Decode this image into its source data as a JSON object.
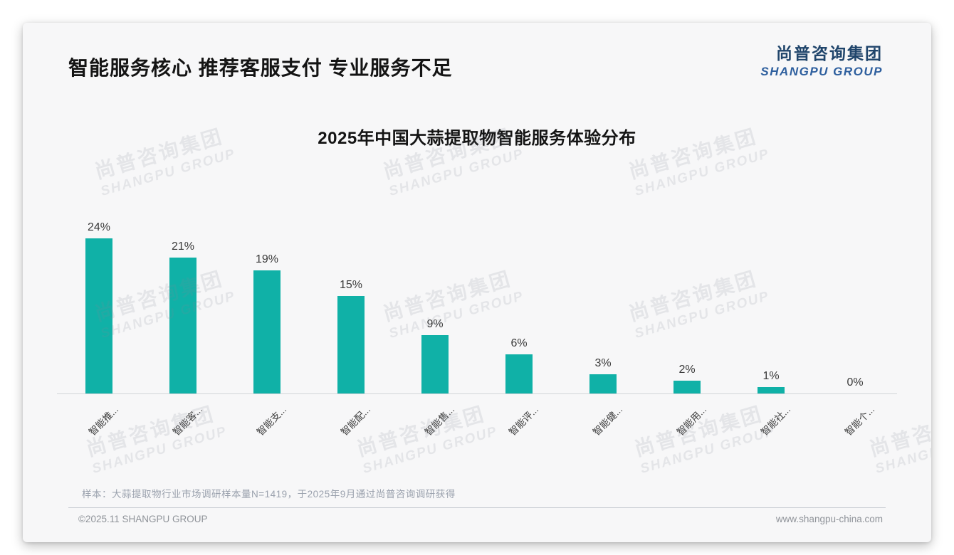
{
  "page": {
    "main_title": "智能服务核心 推荐客服支付 专业服务不足",
    "logo": {
      "cn": "尚普咨询集团",
      "en": "SHANGPU GROUP"
    },
    "watermark": {
      "cn": "尚普咨询集团",
      "en": "SHANGPU GROUP"
    },
    "footnote": "样本：大蒜提取物行业市场调研样本量N=1419，于2025年9月通过尚普咨询调研获得",
    "footer": {
      "left": "©2025.11 SHANGPU GROUP",
      "right": "www.shangpu-china.com"
    }
  },
  "chart_data": {
    "type": "bar",
    "title": "2025年中国大蒜提取物智能服务体验分布",
    "categories": [
      "智能推...",
      "智能客...",
      "智能支...",
      "智能配...",
      "智能售...",
      "智能评...",
      "智能健...",
      "智能用...",
      "智能社...",
      "智能个..."
    ],
    "values": [
      24,
      21,
      19,
      15,
      9,
      6,
      3,
      2,
      1,
      0
    ],
    "value_labels": [
      "24%",
      "21%",
      "19%",
      "15%",
      "9%",
      "6%",
      "3%",
      "2%",
      "1%",
      "0%"
    ],
    "bar_color": "#10b1a7",
    "xlabel": "",
    "ylabel": "",
    "ylim": [
      0,
      25
    ],
    "grid": false,
    "legend": false,
    "value_labels_shown": true,
    "x_label_rotation_deg": 45
  }
}
